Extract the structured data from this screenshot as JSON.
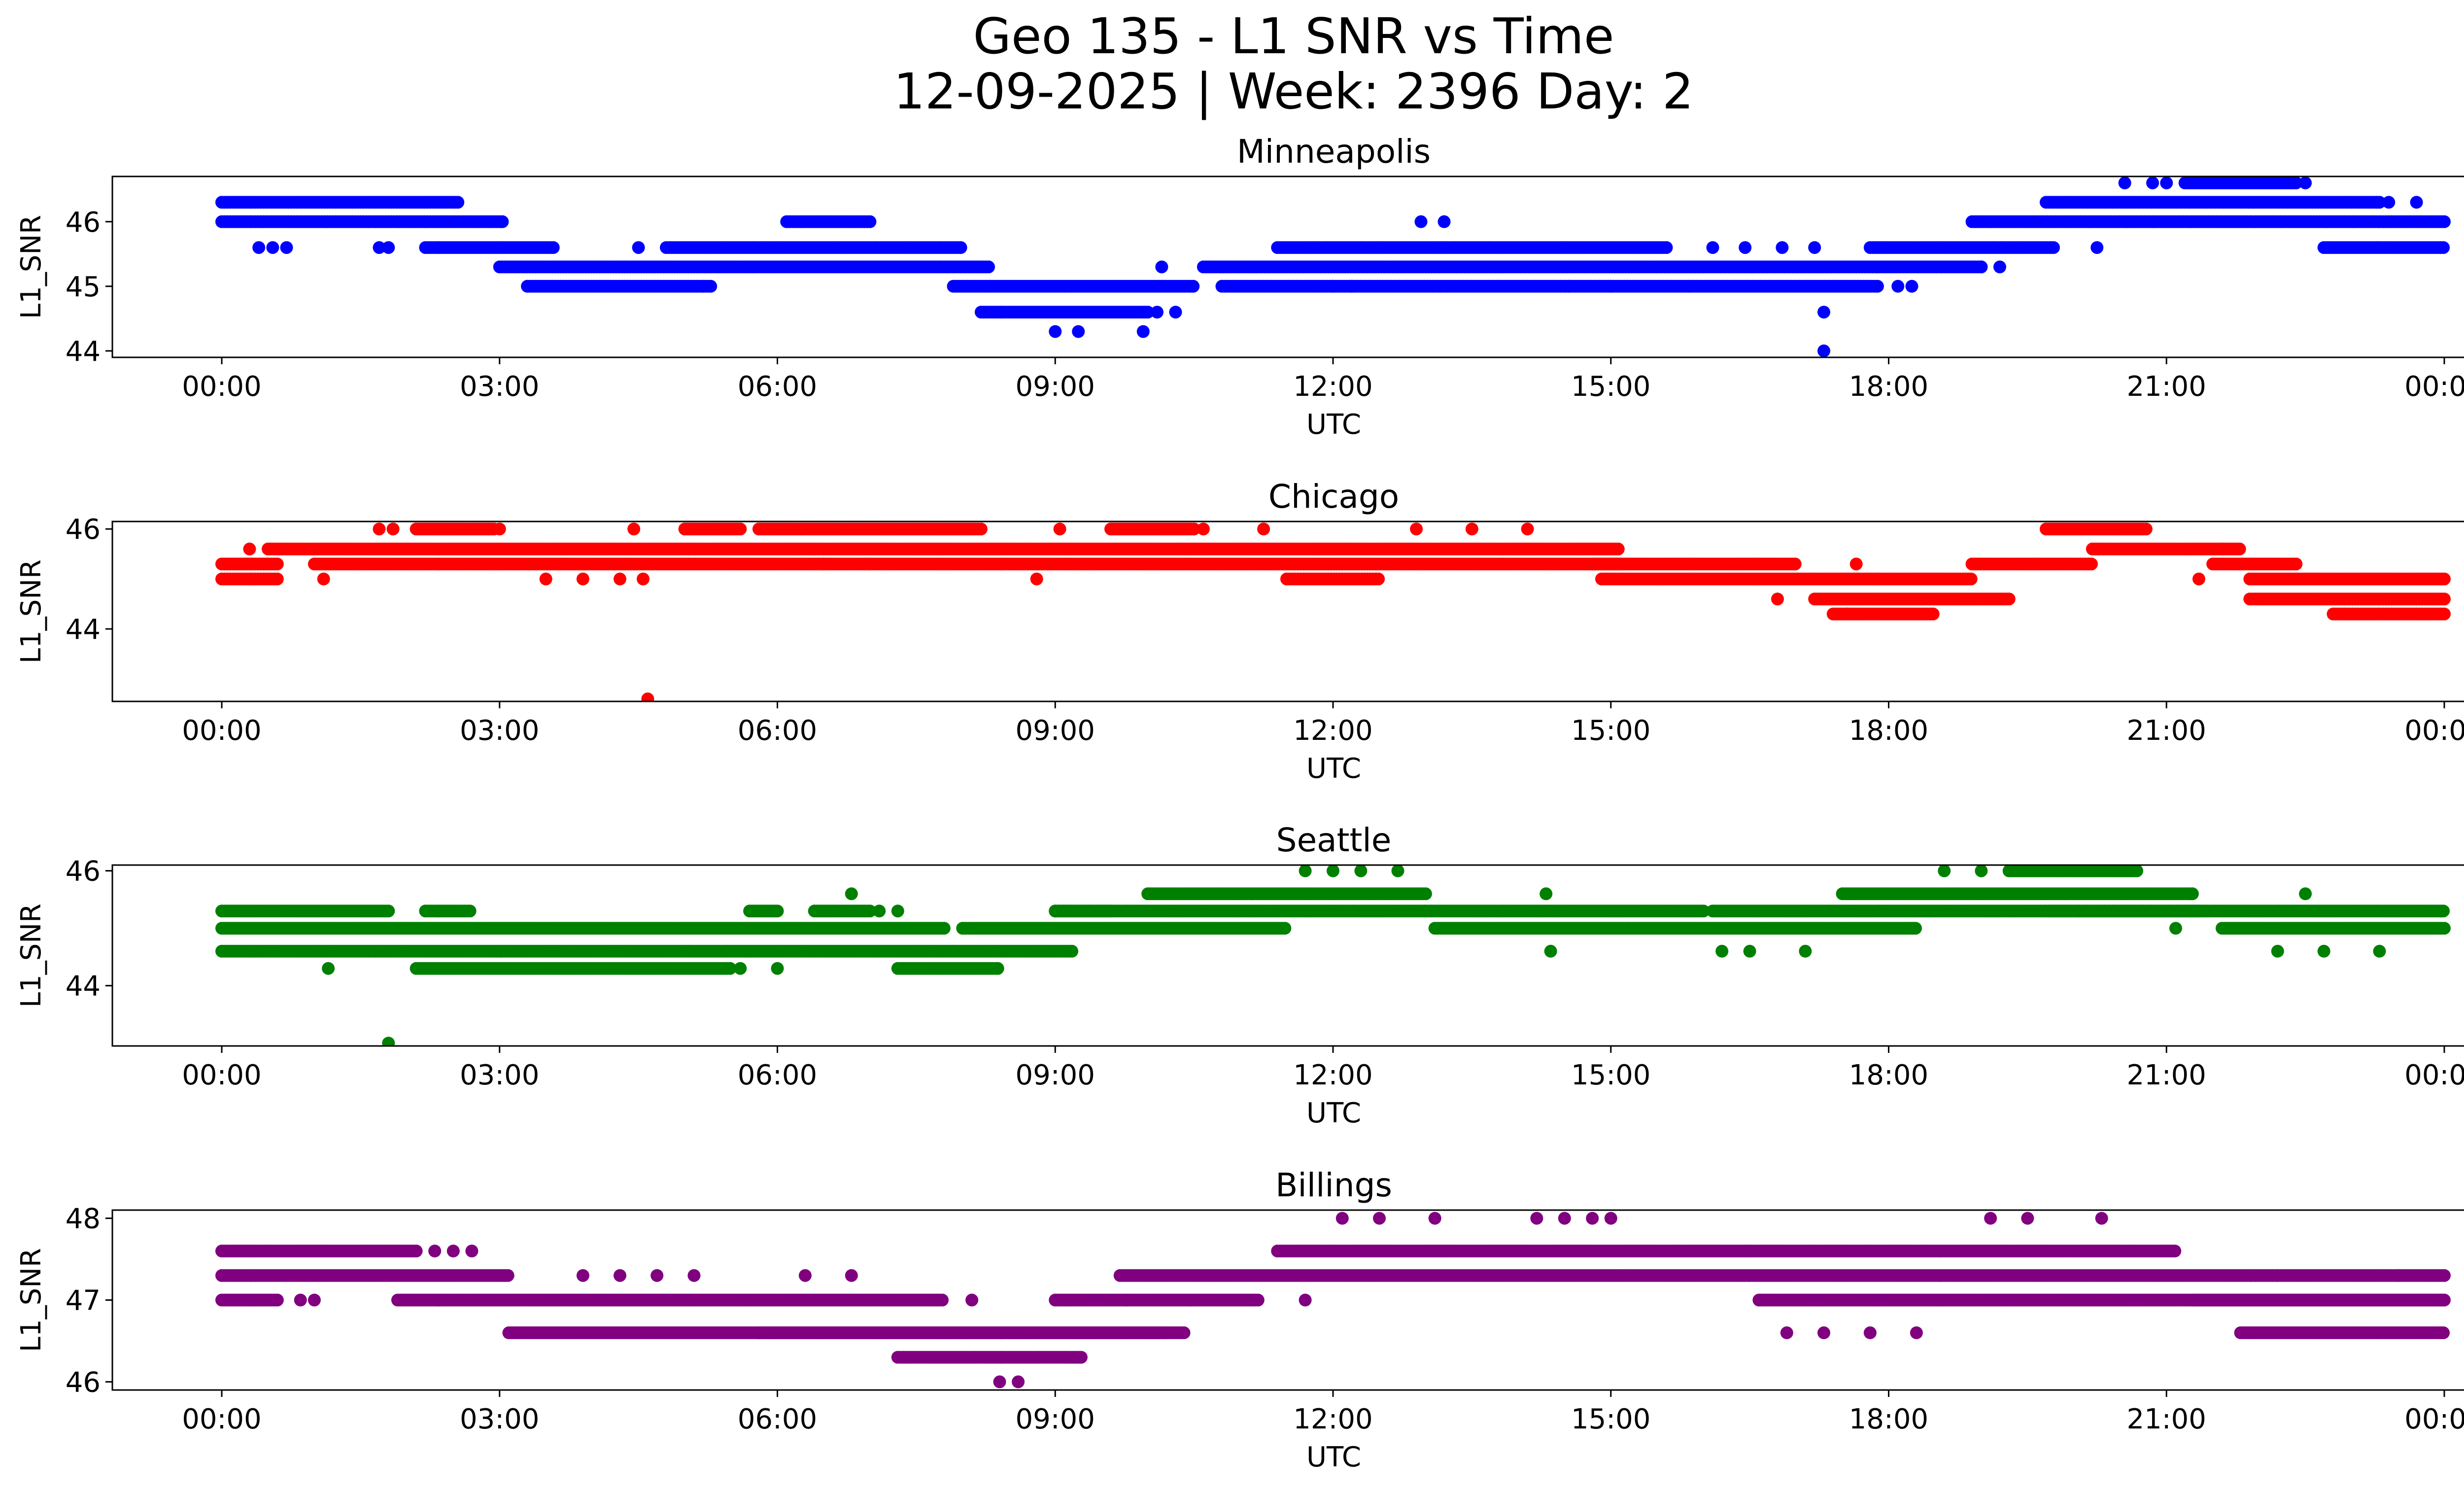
{
  "suptitle": [
    "Geo 135 - L1 SNR vs Time",
    "12-09-2025 | Week: 2396 Day: 2"
  ],
  "chart_data": [
    {
      "type": "scatter",
      "title": "Minneapolis",
      "xlabel": "UTC",
      "ylabel": "L1_SNR",
      "color": "#0000ff",
      "xticks": [
        "00:00",
        "03:00",
        "06:00",
        "09:00",
        "12:00",
        "15:00",
        "18:00",
        "21:00",
        "00:00"
      ],
      "yticks": [
        44,
        45,
        46
      ],
      "ylim": [
        43.9,
        46.7
      ],
      "segments": [
        [
          0.0,
          2.55,
          46.3
        ],
        [
          0.0,
          3.05,
          46.0
        ],
        [
          2.2,
          3.6,
          45.6
        ],
        [
          3.0,
          8.3,
          45.3
        ],
        [
          3.3,
          5.3,
          45.0
        ],
        [
          4.8,
          8.0,
          45.6
        ],
        [
          6.1,
          7.0,
          46.0
        ],
        [
          7.9,
          8.3,
          45.0
        ],
        [
          8.3,
          10.5,
          45.0
        ],
        [
          8.2,
          10.0,
          44.6
        ],
        [
          10.6,
          19.0,
          45.3
        ],
        [
          11.4,
          15.6,
          45.6
        ],
        [
          10.8,
          17.9,
          45.0
        ],
        [
          17.8,
          19.8,
          45.6
        ],
        [
          18.9,
          24.0,
          46.0
        ],
        [
          19.7,
          23.3,
          46.3
        ],
        [
          21.2,
          22.4,
          46.6
        ],
        [
          22.7,
          24.0,
          45.6
        ]
      ],
      "points": [
        [
          0.4,
          45.6
        ],
        [
          0.55,
          45.6
        ],
        [
          0.7,
          45.6
        ],
        [
          1.7,
          45.6
        ],
        [
          1.8,
          45.6
        ],
        [
          4.5,
          45.6
        ],
        [
          5.2,
          45.0
        ],
        [
          9.0,
          44.3
        ],
        [
          9.25,
          44.3
        ],
        [
          9.95,
          44.3
        ],
        [
          10.1,
          44.6
        ],
        [
          10.3,
          44.6
        ],
        [
          10.15,
          45.3
        ],
        [
          12.95,
          46.0
        ],
        [
          13.2,
          46.0
        ],
        [
          12.0,
          45.0
        ],
        [
          12.2,
          45.0
        ],
        [
          14.55,
          45.0
        ],
        [
          15.0,
          45.0
        ],
        [
          16.1,
          45.6
        ],
        [
          16.45,
          45.6
        ],
        [
          16.85,
          45.6
        ],
        [
          17.2,
          45.6
        ],
        [
          17.3,
          44.6
        ],
        [
          17.3,
          44.0
        ],
        [
          18.1,
          45.0
        ],
        [
          18.25,
          45.0
        ],
        [
          19.0,
          45.3
        ],
        [
          19.2,
          45.3
        ],
        [
          20.25,
          45.6
        ],
        [
          20.55,
          46.6
        ],
        [
          20.85,
          46.6
        ],
        [
          21.0,
          46.6
        ],
        [
          22.5,
          46.6
        ],
        [
          23.4,
          46.3
        ],
        [
          23.7,
          46.3
        ]
      ]
    },
    {
      "type": "scatter",
      "title": "Chicago",
      "xlabel": "UTC",
      "ylabel": "L1_SNR",
      "color": "#ff0000",
      "xticks": [
        "00:00",
        "03:00",
        "06:00",
        "09:00",
        "12:00",
        "15:00",
        "18:00",
        "21:00",
        "00:00"
      ],
      "yticks": [
        44,
        46
      ],
      "ylim": [
        42.55,
        46.15
      ],
      "segments": [
        [
          0.0,
          0.6,
          45.3
        ],
        [
          0.0,
          0.6,
          45.0
        ],
        [
          0.5,
          15.1,
          45.6
        ],
        [
          1.0,
          15.1,
          45.3
        ],
        [
          2.1,
          2.95,
          46.0
        ],
        [
          5.0,
          5.6,
          46.0
        ],
        [
          5.8,
          8.2,
          46.0
        ],
        [
          9.6,
          10.5,
          46.0
        ],
        [
          11.5,
          12.5,
          45.0
        ],
        [
          14.8,
          17.0,
          45.3
        ],
        [
          14.9,
          18.9,
          45.0
        ],
        [
          17.2,
          19.3,
          44.6
        ],
        [
          17.4,
          18.5,
          44.3
        ],
        [
          18.9,
          20.2,
          45.3
        ],
        [
          19.7,
          20.8,
          46.0
        ],
        [
          20.2,
          21.8,
          45.6
        ],
        [
          21.5,
          22.4,
          45.3
        ],
        [
          21.9,
          24.0,
          45.0
        ],
        [
          21.9,
          24.0,
          44.6
        ],
        [
          22.8,
          24.0,
          44.3
        ]
      ],
      "points": [
        [
          0.3,
          45.6
        ],
        [
          1.1,
          45.0
        ],
        [
          1.7,
          46.0
        ],
        [
          1.85,
          46.0
        ],
        [
          3.0,
          46.0
        ],
        [
          3.5,
          45.0
        ],
        [
          3.9,
          45.0
        ],
        [
          4.3,
          45.0
        ],
        [
          4.55,
          45.0
        ],
        [
          4.6,
          42.6
        ],
        [
          4.45,
          46.0
        ],
        [
          6.5,
          45.3
        ],
        [
          7.0,
          45.3
        ],
        [
          9.05,
          46.0
        ],
        [
          8.8,
          45.0
        ],
        [
          10.6,
          46.0
        ],
        [
          11.25,
          46.0
        ],
        [
          12.9,
          46.0
        ],
        [
          13.5,
          46.0
        ],
        [
          14.1,
          46.0
        ],
        [
          16.8,
          44.6
        ],
        [
          17.55,
          44.3
        ],
        [
          17.65,
          45.3
        ],
        [
          21.35,
          45.0
        ],
        [
          21.6,
          45.6
        ]
      ]
    },
    {
      "type": "scatter",
      "title": "Seattle",
      "xlabel": "UTC",
      "ylabel": "L1_SNR",
      "color": "#008000",
      "xticks": [
        "00:00",
        "03:00",
        "06:00",
        "09:00",
        "12:00",
        "15:00",
        "18:00",
        "21:00",
        "00:00"
      ],
      "yticks": [
        44,
        46
      ],
      "ylim": [
        42.95,
        46.1
      ],
      "segments": [
        [
          0.0,
          1.8,
          45.3
        ],
        [
          0.0,
          7.8,
          45.0
        ],
        [
          0.0,
          9.2,
          44.6
        ],
        [
          2.1,
          5.5,
          44.3
        ],
        [
          2.2,
          2.7,
          45.3
        ],
        [
          5.7,
          6.0,
          45.3
        ],
        [
          6.4,
          7.0,
          45.3
        ],
        [
          7.3,
          8.4,
          44.3
        ],
        [
          8.0,
          11.5,
          45.0
        ],
        [
          9.0,
          9.6,
          45.3
        ],
        [
          9.0,
          13.0,
          45.3
        ],
        [
          10.0,
          13.0,
          45.6
        ],
        [
          13.1,
          18.3,
          45.0
        ],
        [
          13.0,
          16.0,
          45.3
        ],
        [
          16.1,
          21.4,
          45.3
        ],
        [
          17.5,
          21.3,
          45.6
        ],
        [
          19.3,
          20.7,
          46.0
        ],
        [
          21.6,
          24.0,
          45.0
        ],
        [
          19.7,
          24.0,
          45.3
        ]
      ],
      "points": [
        [
          1.15,
          44.3
        ],
        [
          1.8,
          43.0
        ],
        [
          5.6,
          44.3
        ],
        [
          6.0,
          44.3
        ],
        [
          6.8,
          45.6
        ],
        [
          7.1,
          45.3
        ],
        [
          7.3,
          45.3
        ],
        [
          11.7,
          46.0
        ],
        [
          12.0,
          46.0
        ],
        [
          12.3,
          46.0
        ],
        [
          12.7,
          46.0
        ],
        [
          14.3,
          45.6
        ],
        [
          14.35,
          44.6
        ],
        [
          16.2,
          44.6
        ],
        [
          16.5,
          44.6
        ],
        [
          17.1,
          44.6
        ],
        [
          18.6,
          46.0
        ],
        [
          19.0,
          46.0
        ],
        [
          21.1,
          45.0
        ],
        [
          22.2,
          44.6
        ],
        [
          22.5,
          45.6
        ],
        [
          22.7,
          44.6
        ],
        [
          23.3,
          44.6
        ]
      ]
    },
    {
      "type": "scatter",
      "title": "Billings",
      "xlabel": "UTC",
      "ylabel": "L1_SNR",
      "color": "#800080",
      "xticks": [
        "00:00",
        "03:00",
        "06:00",
        "09:00",
        "12:00",
        "15:00",
        "18:00",
        "21:00",
        "00:00"
      ],
      "yticks": [
        46,
        47,
        48
      ],
      "ylim": [
        45.9,
        48.1
      ],
      "segments": [
        [
          0.0,
          2.1,
          47.6
        ],
        [
          0.0,
          3.1,
          47.3
        ],
        [
          0.0,
          0.6,
          47.0
        ],
        [
          1.9,
          7.8,
          47.0
        ],
        [
          3.1,
          10.4,
          46.6
        ],
        [
          5.8,
          10.2,
          46.6
        ],
        [
          7.3,
          9.3,
          46.3
        ],
        [
          9.0,
          11.2,
          47.0
        ],
        [
          9.7,
          16.5,
          47.3
        ],
        [
          11.4,
          16.5,
          47.6
        ],
        [
          16.5,
          24.0,
          47.3
        ],
        [
          16.5,
          21.1,
          47.6
        ],
        [
          16.6,
          24.0,
          47.0
        ],
        [
          21.3,
          24.0,
          47.0
        ],
        [
          21.8,
          24.0,
          46.6
        ]
      ],
      "points": [
        [
          0.85,
          47.0
        ],
        [
          1.0,
          47.0
        ],
        [
          2.3,
          47.6
        ],
        [
          2.5,
          47.6
        ],
        [
          2.7,
          47.6
        ],
        [
          3.9,
          47.3
        ],
        [
          4.3,
          47.3
        ],
        [
          4.7,
          47.3
        ],
        [
          5.1,
          47.3
        ],
        [
          6.3,
          47.3
        ],
        [
          6.8,
          47.3
        ],
        [
          8.1,
          47.0
        ],
        [
          8.4,
          46.0
        ],
        [
          8.6,
          46.0
        ],
        [
          11.7,
          47.0
        ],
        [
          12.1,
          48.0
        ],
        [
          12.5,
          48.0
        ],
        [
          13.1,
          48.0
        ],
        [
          14.2,
          48.0
        ],
        [
          14.5,
          48.0
        ],
        [
          14.8,
          48.0
        ],
        [
          15.0,
          48.0
        ],
        [
          16.9,
          46.6
        ],
        [
          17.3,
          46.6
        ],
        [
          17.8,
          46.6
        ],
        [
          18.3,
          46.6
        ],
        [
          19.1,
          48.0
        ],
        [
          19.5,
          48.0
        ],
        [
          20.3,
          48.0
        ],
        [
          21.9,
          47.3
        ],
        [
          22.2,
          47.3
        ],
        [
          23.5,
          47.3
        ]
      ]
    }
  ]
}
